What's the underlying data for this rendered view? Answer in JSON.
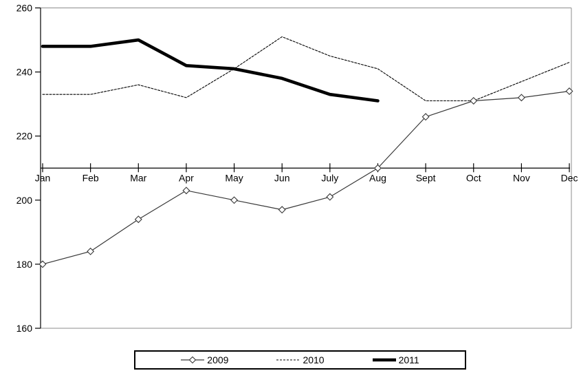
{
  "chart_data": {
    "type": "line",
    "title": "",
    "xlabel": "",
    "ylabel": "",
    "categories": [
      "Jan",
      "Feb",
      "Mar",
      "Apr",
      "May",
      "Jun",
      "July",
      "Aug",
      "Sept",
      "Oct",
      "Nov",
      "Dec"
    ],
    "series": [
      {
        "name": "2009",
        "line_style": "solid-thin",
        "marker": "open-diamond",
        "color": "#383838",
        "values": [
          180,
          184,
          194,
          203,
          200,
          197,
          201,
          210,
          226,
          231,
          232,
          234
        ]
      },
      {
        "name": "2010",
        "line_style": "dashed",
        "marker": "none",
        "color": "#000000",
        "values": [
          233,
          233,
          236,
          232,
          241,
          251,
          245,
          241,
          231,
          231,
          237,
          243
        ]
      },
      {
        "name": "2011",
        "line_style": "solid-thick",
        "marker": "none",
        "color": "#000000",
        "values": [
          248,
          248,
          250,
          242,
          241,
          238,
          233,
          231
        ]
      }
    ],
    "ylim": [
      160,
      260
    ],
    "yticks": [
      160,
      180,
      200,
      220,
      240,
      260
    ],
    "x_axis_crossing_value": 210,
    "grid": false,
    "legend_position": "bottom",
    "legend_labels": [
      "2009",
      "2010",
      "2011"
    ]
  },
  "colors": {
    "frame": "#8c8c8c",
    "axis": "#000000",
    "background": "#ffffff",
    "text": "#000000"
  }
}
